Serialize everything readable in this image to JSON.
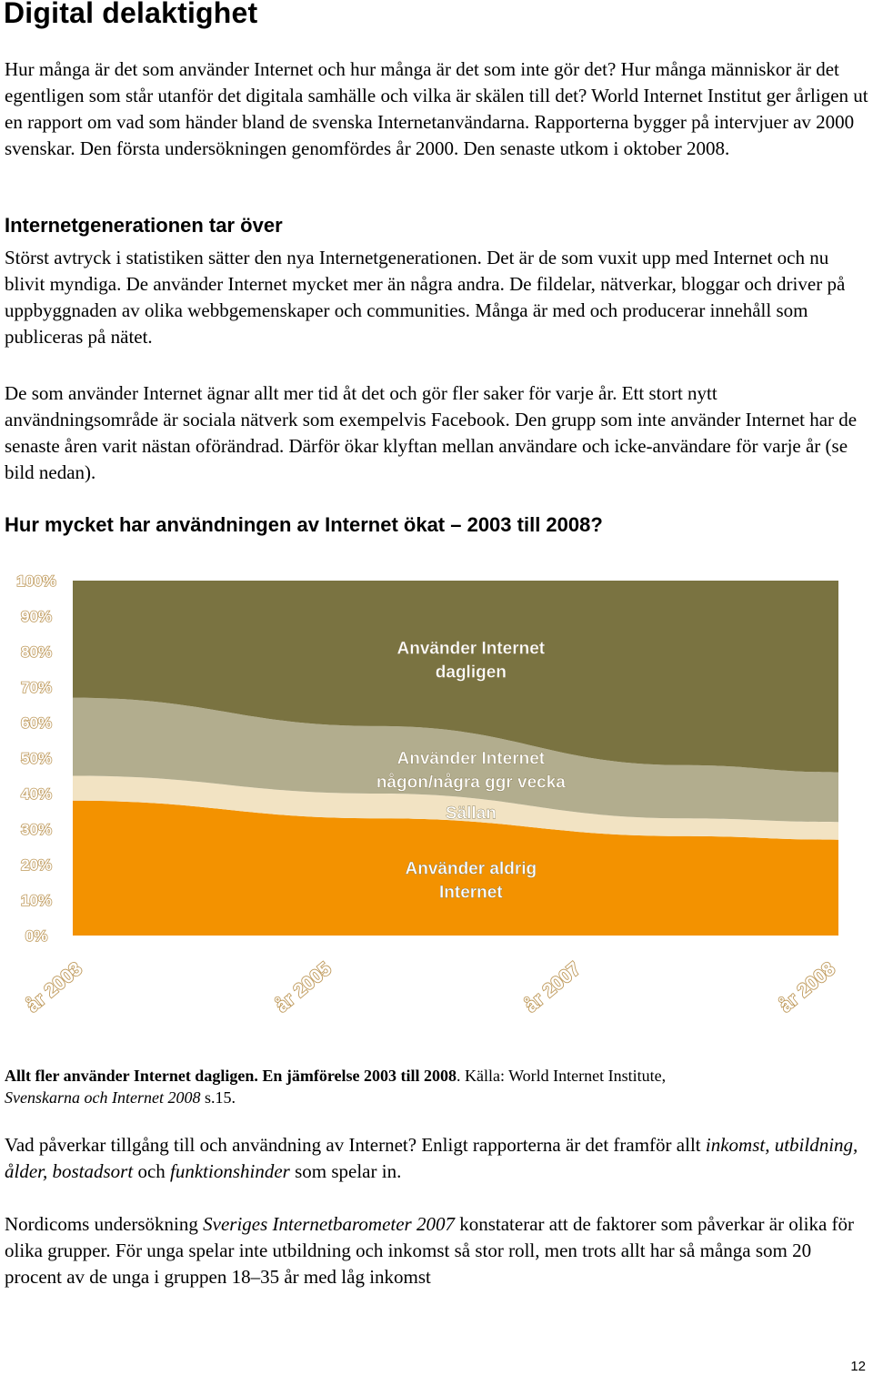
{
  "heading": "Digital delaktighet",
  "intro": "Hur många är det som använder Internet och hur många är det som inte gör det? Hur många människor är det egentligen som står utanför det digitala samhälle och vilka är skälen till det? World Internet Institut ger årligen ut en rapport om vad som händer bland de svenska Internetanvändarna. Rapporterna bygger på intervjuer av 2000 svenskar. Den första undersökningen genomfördes år 2000. Den senaste utkom i oktober 2008.",
  "section1": {
    "title": "Internetgenerationen tar över",
    "para1": "Störst avtryck i statistiken sätter den nya Internetgenerationen. Det är de som vuxit upp med Internet och nu blivit myndiga. De använder Internet mycket mer än några andra. De fildelar, nätverkar, bloggar och driver på uppbyggnaden av olika webbgemenskaper och communities. Många är med och producerar innehåll som publiceras på nätet.",
    "para2": "De som använder Internet ägnar allt mer tid åt det och gör fler saker för varje år. Ett stort nytt användningsområde är sociala nätverk som exempelvis Facebook. Den grupp som inte använder Internet har de senaste åren varit nästan oförändrad. Därför ökar klyftan mellan användare och icke-användare för varje år (se bild nedan)."
  },
  "chart_heading": "Hur mycket har användningen av Internet ökat – 2003 till 2008?",
  "chart_data": {
    "type": "area",
    "stacked": true,
    "x": [
      "år 2003",
      "år 2005",
      "år 2007",
      "år 2008"
    ],
    "x_years": [
      2003,
      2005,
      2007,
      2008
    ],
    "yticks": [
      "0%",
      "10%",
      "20%",
      "30%",
      "40%",
      "50%",
      "60%",
      "70%",
      "80%",
      "90%",
      "100%"
    ],
    "ylim": [
      0,
      100
    ],
    "grid": false,
    "series": [
      {
        "name": "Använder aldrig Internet",
        "values": [
          38,
          33,
          28,
          27
        ],
        "color": "#f39200"
      },
      {
        "name": "Sällan",
        "values": [
          7,
          7,
          5,
          5
        ],
        "color": "#f2e3c3"
      },
      {
        "name": "Använder Internet någon/några ggr vecka",
        "values": [
          22,
          19,
          15,
          14
        ],
        "color": "#b2ad8e"
      },
      {
        "name": "Använder Internet dagligen",
        "values": [
          33,
          41,
          52,
          54
        ],
        "color": "#7a7341"
      }
    ],
    "series_labels": [
      [
        "Använder aldrig",
        "Internet"
      ],
      [
        "Sällan"
      ],
      [
        "Använder Internet",
        "någon/några ggr vecka"
      ],
      [
        "Använder Internet",
        "dagligen"
      ]
    ],
    "axis_color": "#c8a56e",
    "tick_text_color": "#ffffff",
    "tick_stroke_color": "#bf9a5c"
  },
  "caption": {
    "bold": "Allt fler använder Internet dagligen. En jämförelse 2003 till 2008",
    "rest": ". Källa: World Internet Institute,",
    "italic": "Svenskarna och Internet 2008",
    "end": " s.15."
  },
  "para3": {
    "part1": "Vad påverkar tillgång till och användning av Internet? Enligt rapporterna är det framför allt ",
    "italic": "inkomst, utbildning, ålder, bostadsort",
    "part2": " och ",
    "italic2": "funktionshinder",
    "part3": " som spelar in."
  },
  "para4": {
    "part1": "Nordicoms undersökning ",
    "italic": "Sveriges Internetbarometer 2007",
    "part2": " konstaterar att de faktorer som påverkar är olika för olika grupper. För unga spelar inte utbildning och inkomst så stor roll, men trots allt har så många som 20 procent av de unga i gruppen 18–35 år med låg inkomst"
  },
  "page_number": "12"
}
